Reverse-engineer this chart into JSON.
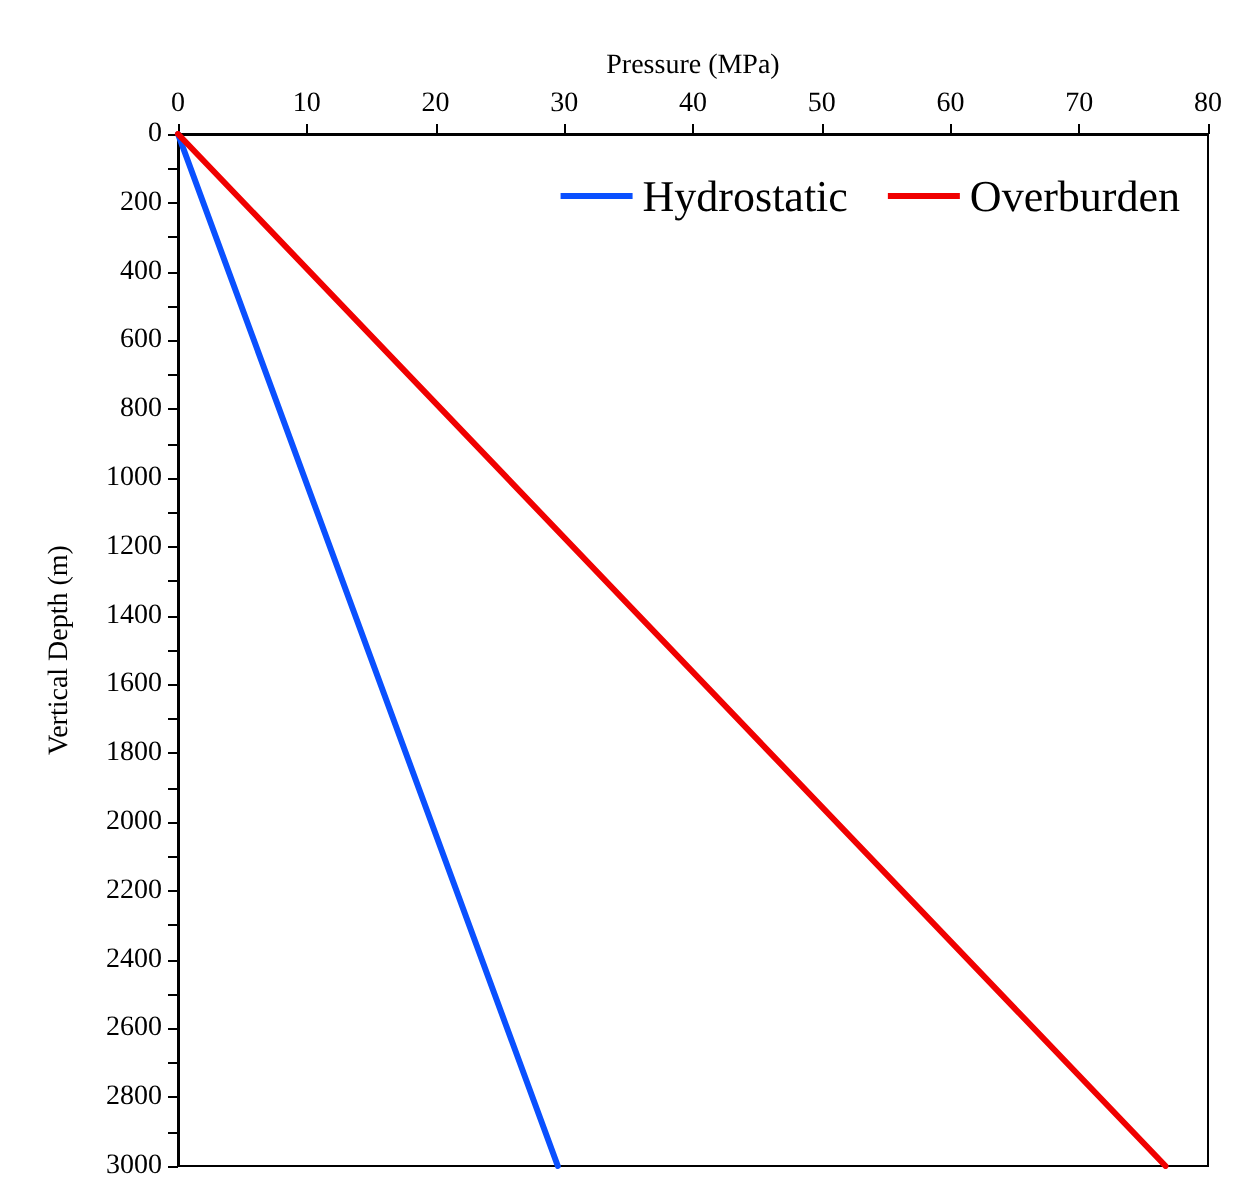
{
  "chart_data": {
    "type": "line",
    "xlabel": "Pressure (MPa)",
    "ylabel": "Vertical Depth (m)",
    "series": [
      {
        "name": "Hydrostatic",
        "color": "#0a50ff",
        "x": [
          0,
          29.5
        ],
        "values": [
          0,
          3000
        ]
      },
      {
        "name": "Overburden",
        "color": "#f00000",
        "x": [
          0,
          76.7
        ],
        "values": [
          0,
          3000
        ]
      }
    ],
    "xlim": [
      0,
      80
    ],
    "xticks": [
      0,
      10,
      20,
      30,
      40,
      50,
      60,
      70,
      80
    ],
    "ylim": [
      3000,
      0
    ],
    "yticks": [
      0,
      {
        "value": 100,
        "label": null
      },
      200,
      {
        "value": 300,
        "label": null
      },
      400,
      {
        "value": 500,
        "label": null
      },
      600,
      {
        "value": 700,
        "label": null
      },
      800,
      {
        "value": 900,
        "label": null
      },
      1000,
      {
        "value": 1100,
        "label": null
      },
      1200,
      {
        "value": 1300,
        "label": null
      },
      1400,
      {
        "value": 1500,
        "label": null
      },
      1600,
      {
        "value": 1700,
        "label": null
      },
      1800,
      {
        "value": 1900,
        "label": null
      },
      2000,
      {
        "value": 2100,
        "label": null
      },
      2200,
      {
        "value": 2300,
        "label": null
      },
      2400,
      {
        "value": 2500,
        "label": null
      },
      2600,
      {
        "value": 2700,
        "label": null
      },
      2800,
      {
        "value": 2900,
        "label": null
      },
      3000
    ],
    "legend": "top right",
    "grid": false,
    "marker": "none",
    "line_style": "solid"
  }
}
